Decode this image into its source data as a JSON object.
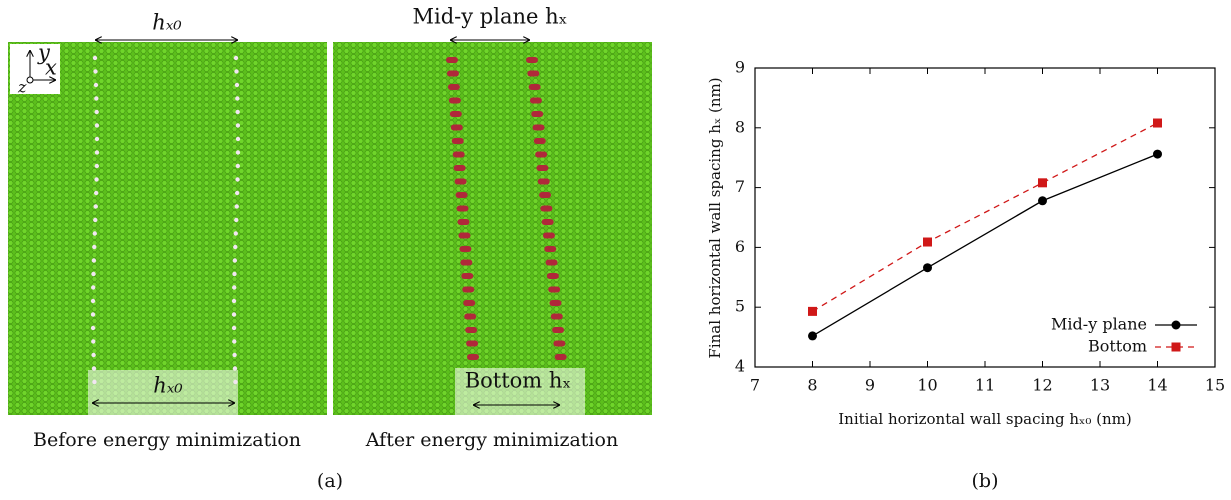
{
  "panel_a": {
    "label": "(a)",
    "before": {
      "caption": "Before energy minimization",
      "top_label": "hₓ₀",
      "bottom_label": "hₓ₀"
    },
    "after": {
      "caption": "After energy minimization",
      "top_label": "Mid-y plane hₓ",
      "bottom_label": "Bottom hₓ"
    },
    "axes": {
      "y": "y",
      "x": "x",
      "z": "z"
    }
  },
  "chart_data": {
    "type": "line",
    "label": "(b)",
    "x_label": "Initial horizontal wall spacing hₓ₀ (nm)",
    "y_label": "Final horizontal wall spacing hₓ (nm)",
    "x": [
      8,
      10,
      12,
      14
    ],
    "series": [
      {
        "name": "Mid-y plane",
        "color": "#000000",
        "dash": false,
        "marker": "circle",
        "values": [
          4.52,
          5.66,
          6.78,
          7.56
        ]
      },
      {
        "name": "Bottom",
        "color": "#d01818",
        "dash": true,
        "marker": "square",
        "values": [
          4.93,
          6.09,
          7.08,
          8.08
        ]
      }
    ],
    "xlim": [
      7,
      15
    ],
    "xticks": [
      7,
      8,
      9,
      10,
      11,
      12,
      13,
      14,
      15
    ],
    "ylim": [
      4,
      9
    ],
    "yticks": [
      4,
      5,
      6,
      7,
      8,
      9
    ],
    "legend": "lower right"
  }
}
